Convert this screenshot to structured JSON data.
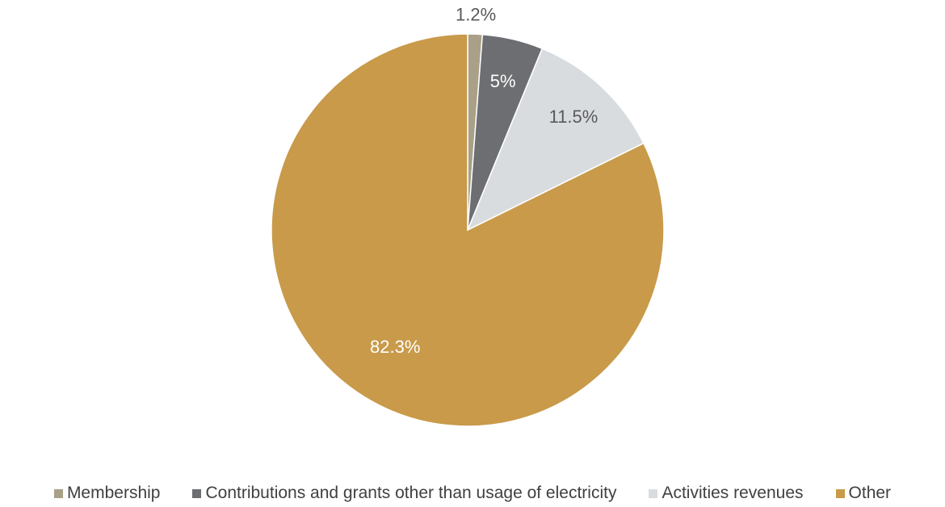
{
  "chart_data": {
    "type": "pie",
    "title": "",
    "categories": [
      "Membership",
      "Contributions and grants other than usage of electricity",
      "Activities revenues",
      "Other"
    ],
    "values": [
      1.2,
      5,
      11.5,
      82.3
    ],
    "value_labels": [
      "1.2%",
      "5%",
      "11.5%",
      "82.3%"
    ],
    "colors": [
      "#a9a087",
      "#6d6e71",
      "#d9dcdf",
      "#c89a4a"
    ],
    "label_colors": [
      "#595959",
      "#ffffff",
      "#595959",
      "#ffffff"
    ],
    "start_angle": "top (12 o'clock), clockwise",
    "legend_position": "bottom"
  }
}
